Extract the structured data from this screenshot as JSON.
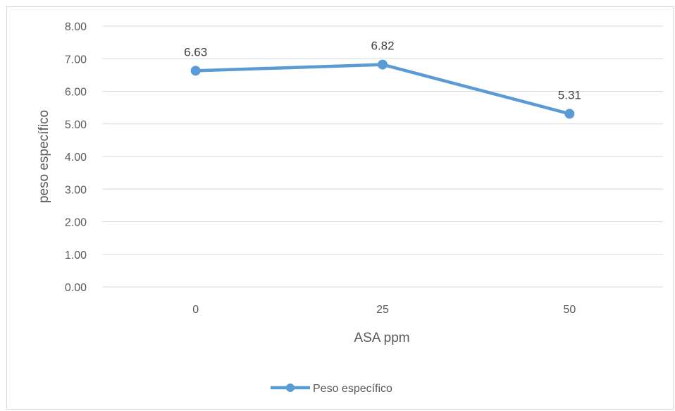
{
  "chart_data": {
    "type": "line",
    "title": "",
    "xlabel": "ASA ppm",
    "ylabel": "peso específico",
    "categories": [
      "0",
      "25",
      "50"
    ],
    "ylim": [
      0,
      8
    ],
    "y_ticks": [
      "0.00",
      "1.00",
      "2.00",
      "3.00",
      "4.00",
      "5.00",
      "6.00",
      "7.00",
      "8.00"
    ],
    "grid": "horizontal",
    "legend_position": "bottom",
    "series": [
      {
        "name": "Peso específico",
        "values": [
          6.63,
          6.82,
          5.31
        ],
        "data_labels": [
          "6.63",
          "6.82",
          "5.31"
        ],
        "color": "#5b9bd5",
        "marker": "circle"
      }
    ]
  }
}
